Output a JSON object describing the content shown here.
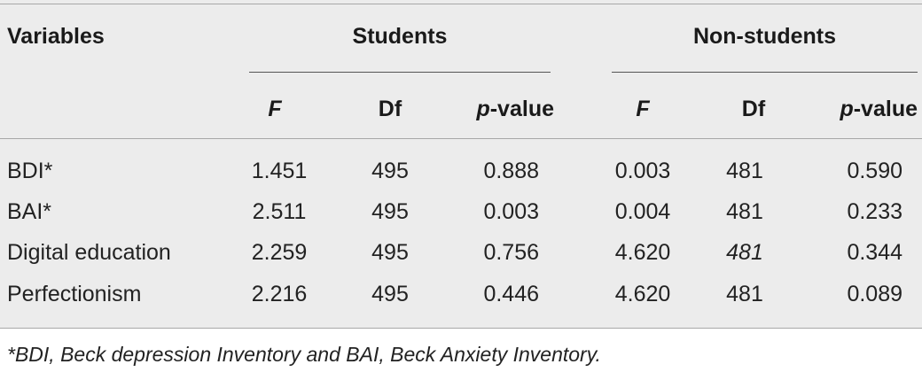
{
  "table": {
    "header": {
      "variables": "Variables",
      "groups": [
        "Students",
        "Non-students"
      ],
      "subcolumns": [
        {
          "prefix": "F",
          "rest": ""
        },
        {
          "prefix": "",
          "rest": "Df"
        },
        {
          "prefix": "p",
          "rest": "-value"
        },
        {
          "prefix": "F",
          "rest": ""
        },
        {
          "prefix": "",
          "rest": "Df"
        },
        {
          "prefix": "p",
          "rest": "-value"
        }
      ]
    },
    "rows": [
      {
        "label": "BDI*",
        "values": [
          "1.451",
          "495",
          "0.888",
          "0.003",
          "481",
          "0.590"
        ]
      },
      {
        "label": "BAI*",
        "values": [
          "2.511",
          "495",
          "0.003",
          "0.004",
          "481",
          "0.233"
        ]
      },
      {
        "label": "Digital education",
        "values": [
          "2.259",
          "495",
          "0.756",
          "4.620",
          "481",
          "0.344"
        ]
      },
      {
        "label": "Perfectionism",
        "values": [
          "2.216",
          "495",
          "0.446",
          "4.620",
          "481",
          "0.089"
        ]
      }
    ],
    "footnote": "*BDI, Beck depression Inventory and BAI, Beck Anxiety Inventory."
  }
}
